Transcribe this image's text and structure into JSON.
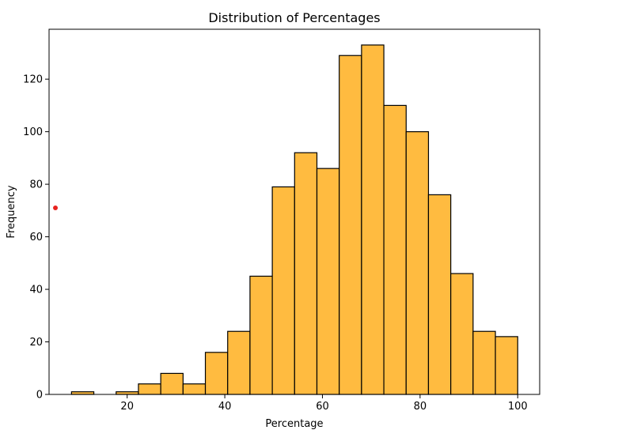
{
  "chart_data": {
    "type": "bar",
    "title": "Distribution of Percentages",
    "xlabel": "Percentage",
    "ylabel": "Frequency",
    "bin_edges": [
      8.6,
      13.17,
      17.74,
      22.31,
      26.88,
      31.45,
      36.02,
      40.59,
      45.16,
      49.73,
      54.3,
      58.87,
      63.44,
      68.01,
      72.58,
      77.15,
      81.72,
      86.29,
      90.86,
      95.43,
      100.0
    ],
    "values": [
      1,
      0,
      1,
      4,
      8,
      4,
      16,
      24,
      45,
      79,
      92,
      86,
      129,
      133,
      110,
      100,
      76,
      46,
      24,
      22
    ],
    "xlim": [
      4.0,
      104.5
    ],
    "ylim": [
      0,
      139
    ],
    "xticks": [
      20,
      40,
      60,
      80,
      100
    ],
    "yticks": [
      0,
      20,
      40,
      60,
      80,
      100,
      120
    ],
    "bar_color": "#FFBB40",
    "edge_color": "#000000",
    "grid": false,
    "annotations": [
      {
        "type": "point",
        "x": 5.3,
        "y": 71,
        "color": "#E8231F"
      }
    ]
  }
}
